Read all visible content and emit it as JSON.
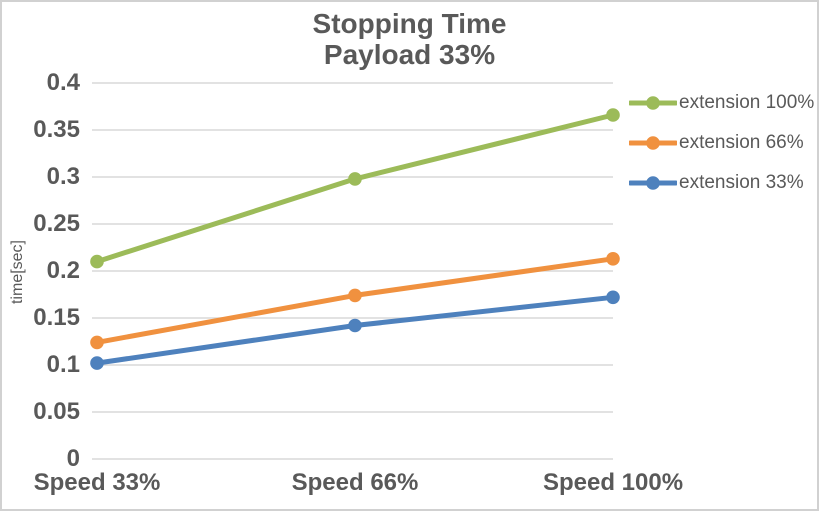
{
  "chart_data": {
    "type": "line",
    "title": "Stopping Time Payload 33%",
    "title_lines": [
      "Stopping Time",
      "Payload 33%"
    ],
    "ylabel": "time[sec]",
    "xlabel": "",
    "categories": [
      "Speed 33%",
      "Speed 66%",
      "Speed 100%"
    ],
    "series": [
      {
        "name": "extension 100%",
        "color": "#9CBB59",
        "values": [
          0.21,
          0.298,
          0.366
        ]
      },
      {
        "name": "extension 66%",
        "color": "#F0913F",
        "values": [
          0.124,
          0.174,
          0.213
        ]
      },
      {
        "name": "extension 33%",
        "color": "#4E81BD",
        "values": [
          0.102,
          0.142,
          0.172
        ]
      }
    ],
    "ylim": [
      0,
      0.4
    ],
    "ytick_step": 0.05,
    "yticks": [
      "0",
      "0.05",
      "0.1",
      "0.15",
      "0.2",
      "0.25",
      "0.3",
      "0.35",
      "0.4"
    ],
    "grid": "horizontal-only",
    "legend_position": "right",
    "colors": {
      "text": "#595959",
      "gridline": "#D9D9D9",
      "frame_border": "#D1D1D1",
      "background": "#FFFFFF"
    }
  }
}
